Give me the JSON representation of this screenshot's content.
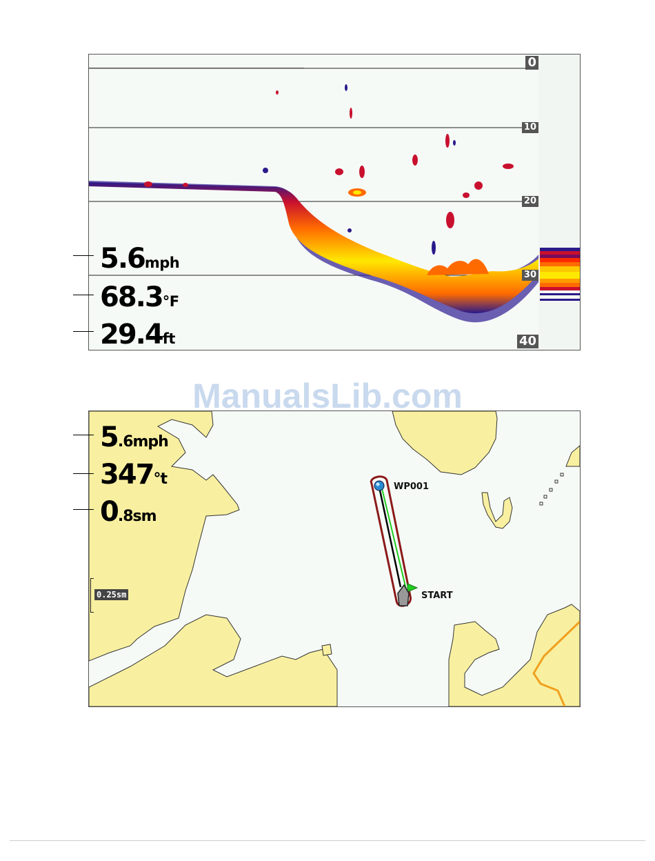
{
  "sonar": {
    "readouts": {
      "speed": {
        "value": "5.6",
        "unit": "mph"
      },
      "temperature": {
        "value": "68.3",
        "unit": "°F"
      },
      "depth": {
        "value": "29.4",
        "unit": "ft"
      }
    },
    "depth_scale": [
      "0",
      "10",
      "20",
      "30",
      "40"
    ],
    "colors": {
      "background": "#f6faf7",
      "return_strong": "#ffe800",
      "return_mid": "#ff6a00",
      "return_weak": "#c8102e",
      "return_faint": "#2a1a8a"
    }
  },
  "watermark": "ManualsLib.com",
  "map": {
    "readouts": {
      "speed": {
        "lead": "5",
        "rest": ".6mph"
      },
      "heading": {
        "lead": "347",
        "rest": "°t"
      },
      "distance": {
        "lead": "0",
        "rest": ".8sm"
      }
    },
    "scale": "0.25sm",
    "waypoint_label": "WP001",
    "start_label": "START",
    "colors": {
      "land": "#f8f0a0",
      "water": "#f6faf7",
      "route": "#22cc22",
      "track": "#000000",
      "route_outline": "#8b1a1a",
      "road": "#f0a020"
    }
  }
}
